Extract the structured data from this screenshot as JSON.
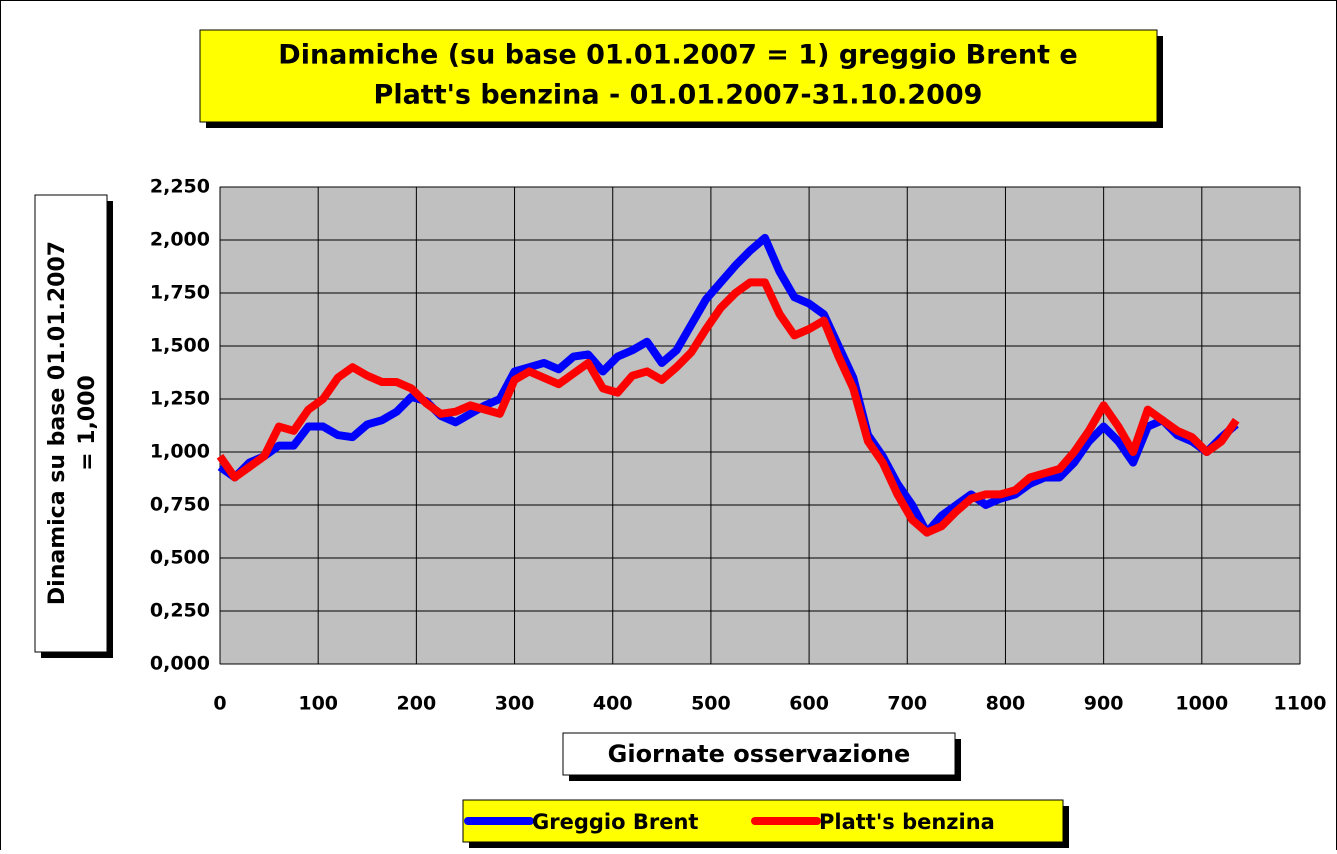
{
  "chart_data": {
    "type": "line",
    "title": "Dinamiche (su base 01.01.2007 = 1) greggio Brent e Platt's benzina - 01.01.2007-31.10.2009",
    "title_lines": [
      "Dinamiche (su base 01.01.2007 = 1) greggio Brent e",
      "Platt's benzina - 01.01.2007-31.10.2009"
    ],
    "x_label": "Giornate osservazione",
    "y_label_lines": [
      "Dinamica su base 01.01.2007",
      "= 1,000"
    ],
    "x": [
      0,
      15,
      30,
      45,
      60,
      75,
      90,
      105,
      120,
      135,
      150,
      165,
      180,
      195,
      210,
      225,
      240,
      255,
      270,
      285,
      300,
      315,
      330,
      345,
      360,
      375,
      390,
      405,
      420,
      435,
      450,
      465,
      480,
      495,
      510,
      525,
      540,
      555,
      570,
      585,
      600,
      615,
      630,
      645,
      660,
      675,
      690,
      705,
      720,
      735,
      750,
      765,
      780,
      795,
      810,
      825,
      840,
      855,
      870,
      885,
      900,
      915,
      930,
      945,
      960,
      975,
      990,
      1005,
      1020,
      1035
    ],
    "series": [
      {
        "name": "Greggio Brent",
        "color": "#0000ff",
        "values": [
          0.93,
          0.88,
          0.95,
          0.98,
          1.03,
          1.03,
          1.12,
          1.12,
          1.08,
          1.07,
          1.13,
          1.15,
          1.19,
          1.26,
          1.24,
          1.17,
          1.14,
          1.18,
          1.22,
          1.25,
          1.38,
          1.4,
          1.42,
          1.39,
          1.45,
          1.46,
          1.38,
          1.45,
          1.48,
          1.52,
          1.42,
          1.48,
          1.6,
          1.72,
          1.8,
          1.88,
          1.95,
          2.01,
          1.85,
          1.73,
          1.7,
          1.65,
          1.5,
          1.35,
          1.08,
          0.98,
          0.85,
          0.75,
          0.62,
          0.7,
          0.75,
          0.8,
          0.75,
          0.78,
          0.8,
          0.85,
          0.88,
          0.88,
          0.95,
          1.05,
          1.12,
          1.05,
          0.95,
          1.12,
          1.15,
          1.08,
          1.05,
          1.0,
          1.07,
          1.13
        ]
      },
      {
        "name": "Platt's benzina",
        "color": "#ff0000",
        "values": [
          0.98,
          0.88,
          0.93,
          0.98,
          1.12,
          1.1,
          1.2,
          1.25,
          1.35,
          1.4,
          1.36,
          1.33,
          1.33,
          1.3,
          1.23,
          1.18,
          1.19,
          1.22,
          1.2,
          1.18,
          1.34,
          1.38,
          1.35,
          1.32,
          1.37,
          1.42,
          1.3,
          1.28,
          1.36,
          1.38,
          1.34,
          1.4,
          1.47,
          1.58,
          1.68,
          1.75,
          1.8,
          1.8,
          1.65,
          1.55,
          1.58,
          1.62,
          1.45,
          1.3,
          1.05,
          0.95,
          0.8,
          0.68,
          0.62,
          0.65,
          0.72,
          0.78,
          0.8,
          0.8,
          0.82,
          0.88,
          0.9,
          0.92,
          1.0,
          1.1,
          1.22,
          1.12,
          1.0,
          1.2,
          1.15,
          1.1,
          1.07,
          1.0,
          1.05,
          1.15
        ]
      }
    ],
    "xlim": [
      0,
      1100
    ],
    "xticks": [
      0,
      100,
      200,
      300,
      400,
      500,
      600,
      700,
      800,
      900,
      1000,
      1100
    ],
    "ylim": [
      0,
      2.25
    ],
    "yticks": [
      {
        "value": 0,
        "label": "0,000"
      },
      {
        "value": 0.25,
        "label": "0,250"
      },
      {
        "value": 0.5,
        "label": "0,500"
      },
      {
        "value": 0.75,
        "label": "0,750"
      },
      {
        "value": 1,
        "label": "1,000"
      },
      {
        "value": 1.25,
        "label": "1,250"
      },
      {
        "value": 1.5,
        "label": "1,500"
      },
      {
        "value": 1.75,
        "label": "1,750"
      },
      {
        "value": 2,
        "label": "2,000"
      },
      {
        "value": 2.25,
        "label": "2,250"
      }
    ],
    "grid": true,
    "legend": "bottom"
  }
}
